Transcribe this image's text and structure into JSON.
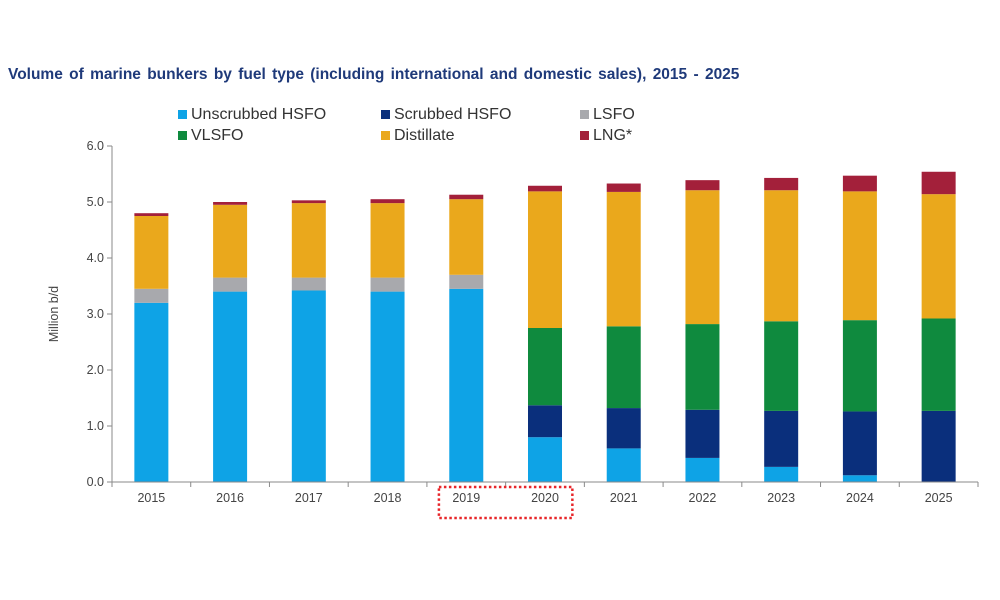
{
  "chart_data": {
    "type": "bar",
    "stacked": true,
    "title": "Volume of marine bunkers by fuel type (including international and domestic sales), 2015 - 2025",
    "xlabel": "",
    "ylabel": "Million b/d",
    "ylim": [
      0,
      6
    ],
    "yticks": [
      "0.0",
      "1.0",
      "2.0",
      "3.0",
      "4.0",
      "5.0",
      "6.0"
    ],
    "grid": false,
    "legend_position": "top",
    "categories": [
      "2015",
      "2016",
      "2017",
      "2018",
      "2019",
      "2020",
      "2021",
      "2022",
      "2023",
      "2024",
      "2025"
    ],
    "highlight": {
      "categories": [
        "2019",
        "2020"
      ],
      "style": "dotted-box",
      "color": "#e8262a"
    },
    "series": [
      {
        "name": "Unscrubbed HSFO",
        "color": "#0ea3e6",
        "values": [
          3.2,
          3.4,
          3.42,
          3.4,
          3.45,
          0.8,
          0.6,
          0.43,
          0.27,
          0.12,
          0.0
        ]
      },
      {
        "name": "Scrubbed HSFO",
        "color": "#0a2f7c",
        "values": [
          0,
          0,
          0,
          0,
          0,
          0.57,
          0.72,
          0.86,
          1.0,
          1.14,
          1.27
        ]
      },
      {
        "name": "LSFO",
        "color": "#a8a9ad",
        "values": [
          0.25,
          0.25,
          0.23,
          0.25,
          0.25,
          0,
          0,
          0,
          0,
          0,
          0
        ]
      },
      {
        "name": "VLSFO",
        "color": "#0f8a3e",
        "values": [
          0,
          0,
          0,
          0,
          0,
          1.38,
          1.46,
          1.53,
          1.6,
          1.63,
          1.65
        ]
      },
      {
        "name": "Distillate",
        "color": "#eaa81c",
        "values": [
          1.3,
          1.3,
          1.33,
          1.33,
          1.35,
          2.44,
          2.4,
          2.39,
          2.34,
          2.3,
          2.22
        ]
      },
      {
        "name": "LNG*",
        "color": "#a3203a",
        "values": [
          0.05,
          0.05,
          0.05,
          0.07,
          0.08,
          0.1,
          0.15,
          0.18,
          0.22,
          0.28,
          0.4
        ]
      }
    ]
  }
}
